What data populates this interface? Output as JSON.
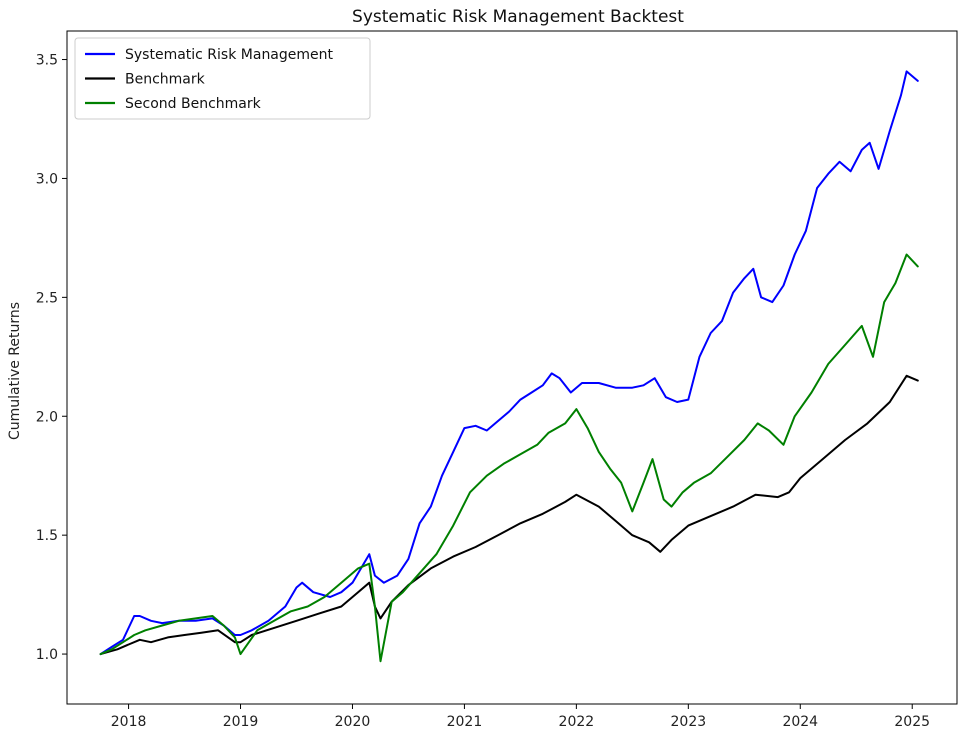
{
  "chart_data": {
    "type": "line",
    "title": "Systematic Risk Management Backtest",
    "xlabel": "",
    "ylabel": "Cumulative Returns",
    "xlim": [
      2017.45,
      2025.4
    ],
    "ylim": [
      0.79,
      3.62
    ],
    "x_ticks": [
      2018,
      2019,
      2020,
      2021,
      2022,
      2023,
      2024,
      2025
    ],
    "x_tick_labels": [
      "2018",
      "2019",
      "2020",
      "2021",
      "2022",
      "2023",
      "2024",
      "2025"
    ],
    "y_ticks": [
      1.0,
      1.5,
      2.0,
      2.5,
      3.0,
      3.5
    ],
    "y_tick_labels": [
      "1.0",
      "1.5",
      "2.0",
      "2.5",
      "3.0",
      "3.5"
    ],
    "grid": false,
    "legend_position": "top-left",
    "legend": [
      "Systematic Risk Management",
      "Benchmark",
      "Second Benchmark"
    ],
    "series": [
      {
        "name": "Systematic Risk Management",
        "color": "#0000ff",
        "x": [
          2017.75,
          2017.85,
          2017.95,
          2018.05,
          2018.1,
          2018.2,
          2018.3,
          2018.45,
          2018.6,
          2018.75,
          2018.85,
          2018.95,
          2019.0,
          2019.1,
          2019.25,
          2019.4,
          2019.5,
          2019.55,
          2019.65,
          2019.8,
          2019.9,
          2020.0,
          2020.1,
          2020.15,
          2020.2,
          2020.28,
          2020.4,
          2020.5,
          2020.6,
          2020.7,
          2020.8,
          2020.9,
          2021.0,
          2021.1,
          2021.2,
          2021.3,
          2021.4,
          2021.5,
          2021.6,
          2021.7,
          2021.78,
          2021.85,
          2021.95,
          2022.05,
          2022.2,
          2022.35,
          2022.5,
          2022.6,
          2022.7,
          2022.8,
          2022.9,
          2023.0,
          2023.1,
          2023.2,
          2023.3,
          2023.4,
          2023.5,
          2023.58,
          2023.65,
          2023.75,
          2023.85,
          2023.95,
          2024.05,
          2024.15,
          2024.25,
          2024.35,
          2024.45,
          2024.55,
          2024.62,
          2024.7,
          2024.8,
          2024.9,
          2024.95,
          2025.05
        ],
        "values": [
          1.0,
          1.03,
          1.06,
          1.16,
          1.16,
          1.14,
          1.13,
          1.14,
          1.14,
          1.15,
          1.12,
          1.08,
          1.08,
          1.1,
          1.14,
          1.2,
          1.28,
          1.3,
          1.26,
          1.24,
          1.26,
          1.3,
          1.38,
          1.42,
          1.33,
          1.3,
          1.33,
          1.4,
          1.55,
          1.62,
          1.75,
          1.85,
          1.95,
          1.96,
          1.94,
          1.98,
          2.02,
          2.07,
          2.1,
          2.13,
          2.18,
          2.16,
          2.1,
          2.14,
          2.14,
          2.12,
          2.12,
          2.13,
          2.16,
          2.08,
          2.06,
          2.07,
          2.25,
          2.35,
          2.4,
          2.52,
          2.58,
          2.62,
          2.5,
          2.48,
          2.55,
          2.68,
          2.78,
          2.96,
          3.02,
          3.07,
          3.03,
          3.12,
          3.15,
          3.04,
          3.2,
          3.35,
          3.45,
          3.41
        ]
      },
      {
        "name": "Benchmark",
        "color": "#000000",
        "x": [
          2017.75,
          2017.9,
          2018.0,
          2018.1,
          2018.2,
          2018.35,
          2018.5,
          2018.65,
          2018.8,
          2018.95,
          2019.0,
          2019.1,
          2019.3,
          2019.5,
          2019.7,
          2019.9,
          2020.05,
          2020.15,
          2020.2,
          2020.25,
          2020.35,
          2020.5,
          2020.7,
          2020.9,
          2021.1,
          2021.3,
          2021.5,
          2021.7,
          2021.9,
          2022.0,
          2022.2,
          2022.35,
          2022.5,
          2022.65,
          2022.75,
          2022.85,
          2023.0,
          2023.2,
          2023.4,
          2023.6,
          2023.8,
          2023.9,
          2024.0,
          2024.2,
          2024.4,
          2024.6,
          2024.8,
          2024.95,
          2025.05
        ],
        "values": [
          1.0,
          1.02,
          1.04,
          1.06,
          1.05,
          1.07,
          1.08,
          1.09,
          1.1,
          1.05,
          1.05,
          1.08,
          1.11,
          1.14,
          1.17,
          1.2,
          1.26,
          1.3,
          1.2,
          1.15,
          1.22,
          1.29,
          1.36,
          1.41,
          1.45,
          1.5,
          1.55,
          1.59,
          1.64,
          1.67,
          1.62,
          1.56,
          1.5,
          1.47,
          1.43,
          1.48,
          1.54,
          1.58,
          1.62,
          1.67,
          1.66,
          1.68,
          1.74,
          1.82,
          1.9,
          1.97,
          2.06,
          2.17,
          2.15
        ]
      },
      {
        "name": "Second Benchmark",
        "color": "#008000",
        "x": [
          2017.75,
          2017.85,
          2017.95,
          2018.05,
          2018.15,
          2018.3,
          2018.45,
          2018.6,
          2018.75,
          2018.85,
          2018.95,
          2019.0,
          2019.15,
          2019.3,
          2019.45,
          2019.6,
          2019.75,
          2019.9,
          2020.05,
          2020.15,
          2020.2,
          2020.25,
          2020.35,
          2020.45,
          2020.6,
          2020.75,
          2020.9,
          2021.05,
          2021.2,
          2021.35,
          2021.5,
          2021.65,
          2021.75,
          2021.9,
          2022.0,
          2022.1,
          2022.2,
          2022.3,
          2022.4,
          2022.5,
          2022.6,
          2022.68,
          2022.78,
          2022.85,
          2022.95,
          2023.05,
          2023.2,
          2023.35,
          2023.5,
          2023.62,
          2023.72,
          2023.85,
          2023.95,
          2024.1,
          2024.25,
          2024.4,
          2024.55,
          2024.65,
          2024.75,
          2024.85,
          2024.95,
          2025.05
        ],
        "values": [
          1.0,
          1.02,
          1.05,
          1.08,
          1.1,
          1.12,
          1.14,
          1.15,
          1.16,
          1.12,
          1.07,
          1.0,
          1.1,
          1.14,
          1.18,
          1.2,
          1.24,
          1.3,
          1.36,
          1.38,
          1.2,
          0.97,
          1.22,
          1.26,
          1.34,
          1.42,
          1.54,
          1.68,
          1.75,
          1.8,
          1.84,
          1.88,
          1.93,
          1.97,
          2.03,
          1.95,
          1.85,
          1.78,
          1.72,
          1.6,
          1.72,
          1.82,
          1.65,
          1.62,
          1.68,
          1.72,
          1.76,
          1.83,
          1.9,
          1.97,
          1.94,
          1.88,
          2.0,
          2.1,
          2.22,
          2.3,
          2.38,
          2.25,
          2.48,
          2.56,
          2.68,
          2.63
        ]
      }
    ]
  }
}
